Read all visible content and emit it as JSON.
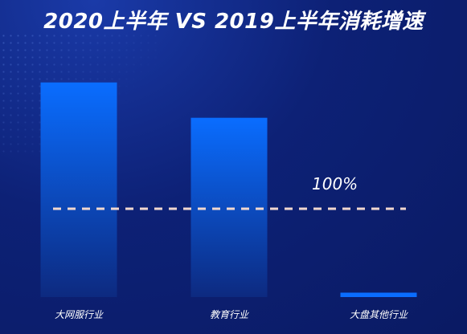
{
  "chart_data": {
    "type": "bar",
    "title": "2020上半年 VS 2019上半年消耗增速",
    "categories": [
      "大网服行业",
      "教育行业",
      "大盘其他行业"
    ],
    "values": [
      243,
      203,
      5
    ],
    "reference_line": {
      "value": 100,
      "label": "100%"
    },
    "ylim": [
      0,
      260
    ],
    "grid": false,
    "colors": {
      "bar_top": "#0a6dff",
      "bar_bottom": "#0d2a80",
      "reference": "#f2d8cf"
    }
  }
}
